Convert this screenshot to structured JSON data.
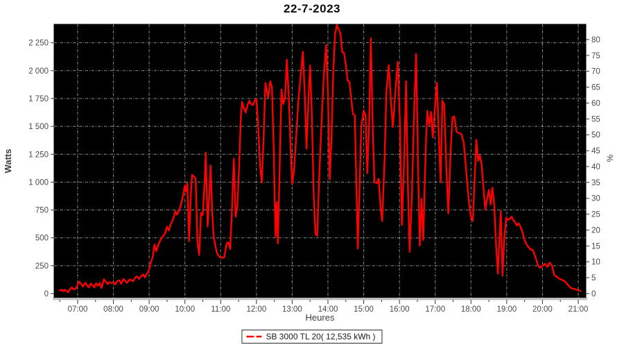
{
  "title": "22-7-2023",
  "legend": {
    "label": "SB 3000 TL 20( 12,535 kWh )",
    "marker_color": "#ff0000"
  },
  "chart_data": {
    "type": "line",
    "title": "22-7-2023",
    "xlabel": "Heures",
    "ylabel_left": "Watts",
    "ylabel_right": "%",
    "plot_bg": "#000000",
    "grid_color": "#a8a8a8",
    "line_color": "#ff0000",
    "tick_text_color": "#4a4a4a",
    "axis_text_color": "#3d3d3d",
    "x_ticks": [
      "07:00",
      "08:00",
      "09:00",
      "10:00",
      "11:00",
      "12:00",
      "13:00",
      "14:00",
      "15:00",
      "16:00",
      "17:00",
      "18:00",
      "19:00",
      "20:00",
      "21:00"
    ],
    "y_left_tick_labels": [
      "0",
      "250",
      "500",
      "750",
      "1 000",
      "1 250",
      "1 500",
      "1 750",
      "2 000",
      "2 250"
    ],
    "y_left_tick_values": [
      0,
      250,
      500,
      750,
      1000,
      1250,
      1500,
      1750,
      2000,
      2250
    ],
    "y_right_tick_values": [
      0,
      5,
      10,
      15,
      20,
      25,
      30,
      35,
      40,
      45,
      50,
      55,
      60,
      65,
      70,
      75,
      80
    ],
    "ylim_left": [
      0,
      2416
    ],
    "ylim_right": [
      0,
      84.8
    ],
    "grid": true,
    "legend_position": "bottom-center",
    "series": [
      {
        "name": "SB 3000 TL 20",
        "energy_total": "12,535 kWh",
        "points": [
          [
            "06:30",
            28
          ],
          [
            "06:33",
            35
          ],
          [
            "06:36",
            20
          ],
          [
            "06:38",
            35
          ],
          [
            "06:41",
            25
          ],
          [
            "06:44",
            12
          ],
          [
            "06:47",
            40
          ],
          [
            "06:50",
            55
          ],
          [
            "06:53",
            38
          ],
          [
            "06:57",
            45
          ],
          [
            "07:00",
            80
          ],
          [
            "07:03",
            108
          ],
          [
            "07:06",
            85
          ],
          [
            "07:09",
            62
          ],
          [
            "07:13",
            98
          ],
          [
            "07:16",
            70
          ],
          [
            "07:19",
            55
          ],
          [
            "07:22",
            90
          ],
          [
            "07:25",
            75
          ],
          [
            "07:28",
            55
          ],
          [
            "07:31",
            92
          ],
          [
            "07:34",
            70
          ],
          [
            "07:37",
            95
          ],
          [
            "07:40",
            50
          ],
          [
            "07:44",
            128
          ],
          [
            "07:47",
            110
          ],
          [
            "07:50",
            85
          ],
          [
            "07:53",
            102
          ],
          [
            "07:56",
            95
          ],
          [
            "08:00",
            100
          ],
          [
            "08:03",
            82
          ],
          [
            "08:07",
            115
          ],
          [
            "08:10",
            118
          ],
          [
            "08:13",
            88
          ],
          [
            "08:17",
            130
          ],
          [
            "08:20",
            110
          ],
          [
            "08:23",
            96
          ],
          [
            "08:27",
            125
          ],
          [
            "08:30",
            122
          ],
          [
            "08:33",
            110
          ],
          [
            "08:37",
            148
          ],
          [
            "08:40",
            152
          ],
          [
            "08:43",
            130
          ],
          [
            "08:47",
            160
          ],
          [
            "08:50",
            172
          ],
          [
            "08:53",
            145
          ],
          [
            "08:57",
            185
          ],
          [
            "09:00",
            215
          ],
          [
            "09:03",
            280
          ],
          [
            "09:06",
            330
          ],
          [
            "09:09",
            440
          ],
          [
            "09:12",
            380
          ],
          [
            "09:15",
            430
          ],
          [
            "09:18",
            470
          ],
          [
            "09:21",
            500
          ],
          [
            "09:24",
            520
          ],
          [
            "09:27",
            545
          ],
          [
            "09:30",
            600
          ],
          [
            "09:33",
            565
          ],
          [
            "09:36",
            620
          ],
          [
            "09:40",
            665
          ],
          [
            "09:44",
            738
          ],
          [
            "09:47",
            708
          ],
          [
            "09:50",
            745
          ],
          [
            "09:53",
            790
          ],
          [
            "09:56",
            860
          ],
          [
            "10:00",
            970
          ],
          [
            "10:02",
            915
          ],
          [
            "10:04",
            990
          ],
          [
            "10:07",
            470
          ],
          [
            "10:10",
            900
          ],
          [
            "10:12",
            1065
          ],
          [
            "10:15",
            1050
          ],
          [
            "10:18",
            1030
          ],
          [
            "10:21",
            460
          ],
          [
            "10:24",
            345
          ],
          [
            "10:27",
            725
          ],
          [
            "10:30",
            705
          ],
          [
            "10:33",
            1000
          ],
          [
            "10:35",
            1265
          ],
          [
            "10:38",
            600
          ],
          [
            "10:41",
            900
          ],
          [
            "10:43",
            1150
          ],
          [
            "10:46",
            700
          ],
          [
            "10:48",
            520
          ],
          [
            "10:51",
            430
          ],
          [
            "10:54",
            360
          ],
          [
            "10:58",
            330
          ],
          [
            "11:02",
            320
          ],
          [
            "11:06",
            325
          ],
          [
            "11:10",
            450
          ],
          [
            "11:13",
            460
          ],
          [
            "11:16",
            400
          ],
          [
            "11:19",
            760
          ],
          [
            "11:22",
            1210
          ],
          [
            "11:25",
            690
          ],
          [
            "11:28",
            790
          ],
          [
            "11:31",
            1150
          ],
          [
            "11:34",
            1600
          ],
          [
            "11:36",
            1720
          ],
          [
            "11:39",
            1660
          ],
          [
            "11:42",
            1625
          ],
          [
            "11:45",
            1690
          ],
          [
            "11:48",
            1730
          ],
          [
            "11:51",
            1700
          ],
          [
            "11:54",
            1690
          ],
          [
            "11:57",
            1730
          ],
          [
            "12:00",
            1745
          ],
          [
            "12:03",
            1500
          ],
          [
            "12:06",
            1150
          ],
          [
            "12:09",
            995
          ],
          [
            "12:12",
            1400
          ],
          [
            "12:15",
            1890
          ],
          [
            "12:18",
            1800
          ],
          [
            "12:20",
            1760
          ],
          [
            "12:23",
            1905
          ],
          [
            "12:26",
            1855
          ],
          [
            "12:29",
            1300
          ],
          [
            "12:32",
            510
          ],
          [
            "12:34",
            820
          ],
          [
            "12:36",
            450
          ],
          [
            "12:39",
            1150
          ],
          [
            "12:42",
            1830
          ],
          [
            "12:45",
            1700
          ],
          [
            "12:48",
            1760
          ],
          [
            "12:51",
            2100
          ],
          [
            "12:54",
            1800
          ],
          [
            "12:57",
            1350
          ],
          [
            "13:00",
            985
          ],
          [
            "13:03",
            1100
          ],
          [
            "13:06",
            1350
          ],
          [
            "13:10",
            1700
          ],
          [
            "13:14",
            1950
          ],
          [
            "13:18",
            2170
          ],
          [
            "13:21",
            1800
          ],
          [
            "13:24",
            1300
          ],
          [
            "13:27",
            1700
          ],
          [
            "13:30",
            2045
          ],
          [
            "13:33",
            1600
          ],
          [
            "13:36",
            900
          ],
          [
            "13:39",
            535
          ],
          [
            "13:42",
            520
          ],
          [
            "13:45",
            1000
          ],
          [
            "13:49",
            1500
          ],
          [
            "13:53",
            1950
          ],
          [
            "13:57",
            2230
          ],
          [
            "14:00",
            1800
          ],
          [
            "14:03",
            1025
          ],
          [
            "14:06",
            1400
          ],
          [
            "14:09",
            2000
          ],
          [
            "14:12",
            2330
          ],
          [
            "14:15",
            2410
          ],
          [
            "14:18",
            2370
          ],
          [
            "14:21",
            2330
          ],
          [
            "14:24",
            2165
          ],
          [
            "14:27",
            2160
          ],
          [
            "14:30",
            2050
          ],
          [
            "14:33",
            1910
          ],
          [
            "14:36",
            1900
          ],
          [
            "14:39",
            1750
          ],
          [
            "14:42",
            1610
          ],
          [
            "14:45",
            1600
          ],
          [
            "14:48",
            900
          ],
          [
            "14:50",
            405
          ],
          [
            "14:53",
            950
          ],
          [
            "14:56",
            1500
          ],
          [
            "15:00",
            1640
          ],
          [
            "15:03",
            1600
          ],
          [
            "15:06",
            1080
          ],
          [
            "15:09",
            1500
          ],
          [
            "15:12",
            2290
          ],
          [
            "15:15",
            1500
          ],
          [
            "15:18",
            1000
          ],
          [
            "15:22",
            990
          ],
          [
            "15:25",
            1030
          ],
          [
            "15:28",
            800
          ],
          [
            "15:31",
            650
          ],
          [
            "15:35",
            1200
          ],
          [
            "15:38",
            1800
          ],
          [
            "15:42",
            2050
          ],
          [
            "15:46",
            1700
          ],
          [
            "15:49",
            1495
          ],
          [
            "15:53",
            1800
          ],
          [
            "15:57",
            2080
          ],
          [
            "16:01",
            1500
          ],
          [
            "16:04",
            615
          ],
          [
            "16:08",
            1200
          ],
          [
            "16:11",
            1905
          ],
          [
            "16:14",
            1000
          ],
          [
            "16:17",
            375
          ],
          [
            "16:21",
            900
          ],
          [
            "16:25",
            1700
          ],
          [
            "16:28",
            2150
          ],
          [
            "16:31",
            1200
          ],
          [
            "16:34",
            430
          ],
          [
            "16:37",
            850
          ],
          [
            "16:40",
            480
          ],
          [
            "16:44",
            1300
          ],
          [
            "16:47",
            1640
          ],
          [
            "16:50",
            1510
          ],
          [
            "16:53",
            1630
          ],
          [
            "16:56",
            1400
          ],
          [
            "17:00",
            1700
          ],
          [
            "17:03",
            1890
          ],
          [
            "17:06",
            1400
          ],
          [
            "17:09",
            1000
          ],
          [
            "17:12",
            1730
          ],
          [
            "17:15",
            1700
          ],
          [
            "17:19",
            1100
          ],
          [
            "17:22",
            720
          ],
          [
            "17:26",
            1300
          ],
          [
            "17:29",
            1580
          ],
          [
            "17:32",
            1590
          ],
          [
            "17:36",
            1450
          ],
          [
            "17:40",
            1440
          ],
          [
            "17:44",
            1430
          ],
          [
            "17:48",
            1350
          ],
          [
            "17:52",
            1100
          ],
          [
            "17:56",
            850
          ],
          [
            "18:00",
            690
          ],
          [
            "18:03",
            650
          ],
          [
            "18:06",
            1000
          ],
          [
            "18:09",
            1380
          ],
          [
            "18:12",
            1190
          ],
          [
            "18:15",
            1240
          ],
          [
            "18:18",
            1150
          ],
          [
            "18:21",
            950
          ],
          [
            "18:24",
            755
          ],
          [
            "18:27",
            850
          ],
          [
            "18:30",
            930
          ],
          [
            "18:33",
            800
          ],
          [
            "18:36",
            950
          ],
          [
            "18:39",
            800
          ],
          [
            "18:42",
            450
          ],
          [
            "18:45",
            180
          ],
          [
            "18:48",
            500
          ],
          [
            "18:50",
            740
          ],
          [
            "18:53",
            160
          ],
          [
            "18:56",
            500
          ],
          [
            "18:59",
            680
          ],
          [
            "19:02",
            660
          ],
          [
            "19:05",
            670
          ],
          [
            "19:08",
            690
          ],
          [
            "19:11",
            660
          ],
          [
            "19:14",
            640
          ],
          [
            "19:17",
            610
          ],
          [
            "19:20",
            630
          ],
          [
            "19:23",
            600
          ],
          [
            "19:26",
            560
          ],
          [
            "19:29",
            500
          ],
          [
            "19:32",
            450
          ],
          [
            "19:36",
            420
          ],
          [
            "19:40",
            395
          ],
          [
            "19:44",
            390
          ],
          [
            "19:48",
            330
          ],
          [
            "19:52",
            260
          ],
          [
            "19:56",
            230
          ],
          [
            "20:00",
            250
          ],
          [
            "20:04",
            268
          ],
          [
            "20:08",
            240
          ],
          [
            "20:12",
            278
          ],
          [
            "20:16",
            250
          ],
          [
            "20:20",
            165
          ],
          [
            "20:24",
            150
          ],
          [
            "20:28",
            135
          ],
          [
            "20:32",
            125
          ],
          [
            "20:36",
            115
          ],
          [
            "20:40",
            95
          ],
          [
            "20:44",
            70
          ],
          [
            "20:48",
            50
          ],
          [
            "20:52",
            42
          ],
          [
            "20:56",
            38
          ],
          [
            "21:00",
            30
          ],
          [
            "21:04",
            22
          ]
        ]
      }
    ]
  }
}
